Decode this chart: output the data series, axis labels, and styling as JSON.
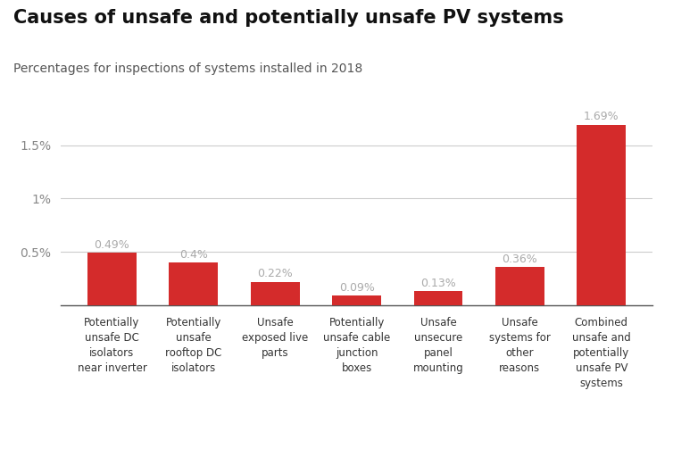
{
  "title": "Causes of unsafe and potentially unsafe PV systems",
  "subtitle": "Percentages for inspections of systems installed in 2018",
  "categories": [
    "Potentially\nunsafe DC\nisolators\nnear inverter",
    "Potentially\nunsafe\nrooftop DC\nisolators",
    "Unsafe\nexposed live\nparts",
    "Potentially\nunsafe cable\njunction\nboxes",
    "Unsafe\nunsecure\npanel\nmounting",
    "Unsafe\nsystems for\nother\nreasons",
    "Combined\nunsafe and\npotentially\nunsafe PV\nsystems"
  ],
  "values": [
    0.49,
    0.4,
    0.22,
    0.09,
    0.13,
    0.36,
    1.69
  ],
  "labels": [
    "0.49%",
    "0.4%",
    "0.22%",
    "0.09%",
    "0.13%",
    "0.36%",
    "1.69%"
  ],
  "bar_color": "#d42b2b",
  "label_color": "#aaaaaa",
  "title_color": "#111111",
  "subtitle_color": "#555555",
  "background_color": "#ffffff",
  "yticks": [
    0.0,
    0.5,
    1.0,
    1.5
  ],
  "ytick_labels": [
    "",
    "0.5%",
    "1%",
    "1.5%"
  ],
  "ylim": [
    0,
    1.85
  ],
  "grid_color": "#cccccc"
}
